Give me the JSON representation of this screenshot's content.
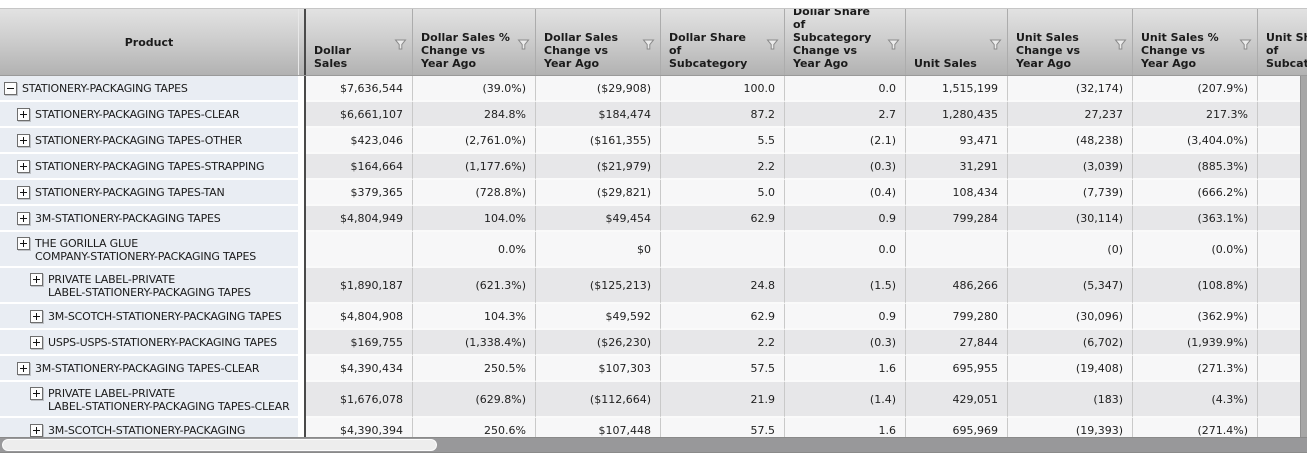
{
  "header": {
    "product_label": "Product",
    "columns": [
      {
        "label": "Dollar Sales",
        "filter": true
      },
      {
        "label": "Dollar Sales % Change vs Year Ago",
        "filter": true
      },
      {
        "label": "Dollar Sales Change vs Year Ago",
        "filter": true
      },
      {
        "label": "Dollar Share of Subcategory",
        "filter": true
      },
      {
        "label": "Dollar Share of Subcategory Change vs Year Ago",
        "filter": true
      },
      {
        "label": "Unit Sales",
        "filter": true
      },
      {
        "label": "Unit Sales Change vs Year Ago",
        "filter": true
      },
      {
        "label": "Unit Sales % Change vs Year Ago",
        "filter": true
      },
      {
        "label": "Unit Share of Subcategory",
        "filter": true
      }
    ]
  },
  "rows": [
    {
      "level": 0,
      "expanded": true,
      "name_lines": [
        "STATIONERY-PACKAGING TAPES"
      ],
      "cells": [
        "$7,636,544",
        "(39.0%)",
        "($29,908)",
        "100.0",
        "0.0",
        "1,515,199",
        "(32,174)",
        "(207.9%)",
        ""
      ]
    },
    {
      "level": 1,
      "expanded": false,
      "name_lines": [
        "STATIONERY-PACKAGING TAPES-CLEAR"
      ],
      "cells": [
        "$6,661,107",
        "284.8%",
        "$184,474",
        "87.2",
        "2.7",
        "1,280,435",
        "27,237",
        "217.3%",
        ""
      ]
    },
    {
      "level": 1,
      "expanded": false,
      "name_lines": [
        "STATIONERY-PACKAGING TAPES-OTHER"
      ],
      "cells": [
        "$423,046",
        "(2,761.0%)",
        "($161,355)",
        "5.5",
        "(2.1)",
        "93,471",
        "(48,238)",
        "(3,404.0%)",
        ""
      ]
    },
    {
      "level": 1,
      "expanded": false,
      "name_lines": [
        "STATIONERY-PACKAGING TAPES-STRAPPING"
      ],
      "cells": [
        "$164,664",
        "(1,177.6%)",
        "($21,979)",
        "2.2",
        "(0.3)",
        "31,291",
        "(3,039)",
        "(885.3%)",
        ""
      ]
    },
    {
      "level": 1,
      "expanded": false,
      "name_lines": [
        "STATIONERY-PACKAGING TAPES-TAN"
      ],
      "cells": [
        "$379,365",
        "(728.8%)",
        "($29,821)",
        "5.0",
        "(0.4)",
        "108,434",
        "(7,739)",
        "(666.2%)",
        ""
      ]
    },
    {
      "level": 1,
      "expanded": false,
      "name_lines": [
        "3M-STATIONERY-PACKAGING TAPES"
      ],
      "cells": [
        "$4,804,949",
        "104.0%",
        "$49,454",
        "62.9",
        "0.9",
        "799,284",
        "(30,114)",
        "(363.1%)",
        ""
      ]
    },
    {
      "level": 1,
      "expanded": false,
      "name_lines": [
        "THE GORILLA GLUE",
        "COMPANY-STATIONERY-PACKAGING TAPES"
      ],
      "cells": [
        "",
        "0.0%",
        "$0",
        "",
        "0.0",
        "",
        "(0)",
        "(0.0%)",
        ""
      ]
    },
    {
      "level": 2,
      "expanded": false,
      "name_lines": [
        "PRIVATE LABEL-PRIVATE",
        "LABEL-STATIONERY-PACKAGING TAPES"
      ],
      "cells": [
        "$1,890,187",
        "(621.3%)",
        "($125,213)",
        "24.8",
        "(1.5)",
        "486,266",
        "(5,347)",
        "(108.8%)",
        ""
      ]
    },
    {
      "level": 2,
      "expanded": false,
      "name_lines": [
        "3M-SCOTCH-STATIONERY-PACKAGING TAPES"
      ],
      "cells": [
        "$4,804,908",
        "104.3%",
        "$49,592",
        "62.9",
        "0.9",
        "799,280",
        "(30,096)",
        "(362.9%)",
        ""
      ]
    },
    {
      "level": 2,
      "expanded": false,
      "name_lines": [
        "USPS-USPS-STATIONERY-PACKAGING TAPES"
      ],
      "cells": [
        "$169,755",
        "(1,338.4%)",
        "($26,230)",
        "2.2",
        "(0.3)",
        "27,844",
        "(6,702)",
        "(1,939.9%)",
        ""
      ]
    },
    {
      "level": 1,
      "expanded": false,
      "name_lines": [
        "3M-STATIONERY-PACKAGING TAPES-CLEAR"
      ],
      "cells": [
        "$4,390,434",
        "250.5%",
        "$107,303",
        "57.5",
        "1.6",
        "695,955",
        "(19,408)",
        "(271.3%)",
        ""
      ]
    },
    {
      "level": 2,
      "expanded": false,
      "name_lines": [
        "PRIVATE LABEL-PRIVATE",
        "LABEL-STATIONERY-PACKAGING TAPES-CLEAR"
      ],
      "cells": [
        "$1,676,078",
        "(629.8%)",
        "($112,664)",
        "21.9",
        "(1.4)",
        "429,051",
        "(183)",
        "(4.3%)",
        ""
      ]
    },
    {
      "level": 2,
      "expanded": false,
      "name_lines": [
        "3M-SCOTCH-STATIONERY-PACKAGING"
      ],
      "cells": [
        "$4,390,394",
        "250.6%",
        "$107,448",
        "57.5",
        "1.6",
        "695,969",
        "(19,393)",
        "(271.4%)",
        ""
      ]
    }
  ],
  "colors": {
    "row_light": "#f7f7f8",
    "row_dark": "#e7e7e9",
    "product_cell": "#e9edf3",
    "pane_divider": "#4a4a4a",
    "scrollbar_track": "#98989a",
    "scrollbar_thumb": "#ededed"
  }
}
